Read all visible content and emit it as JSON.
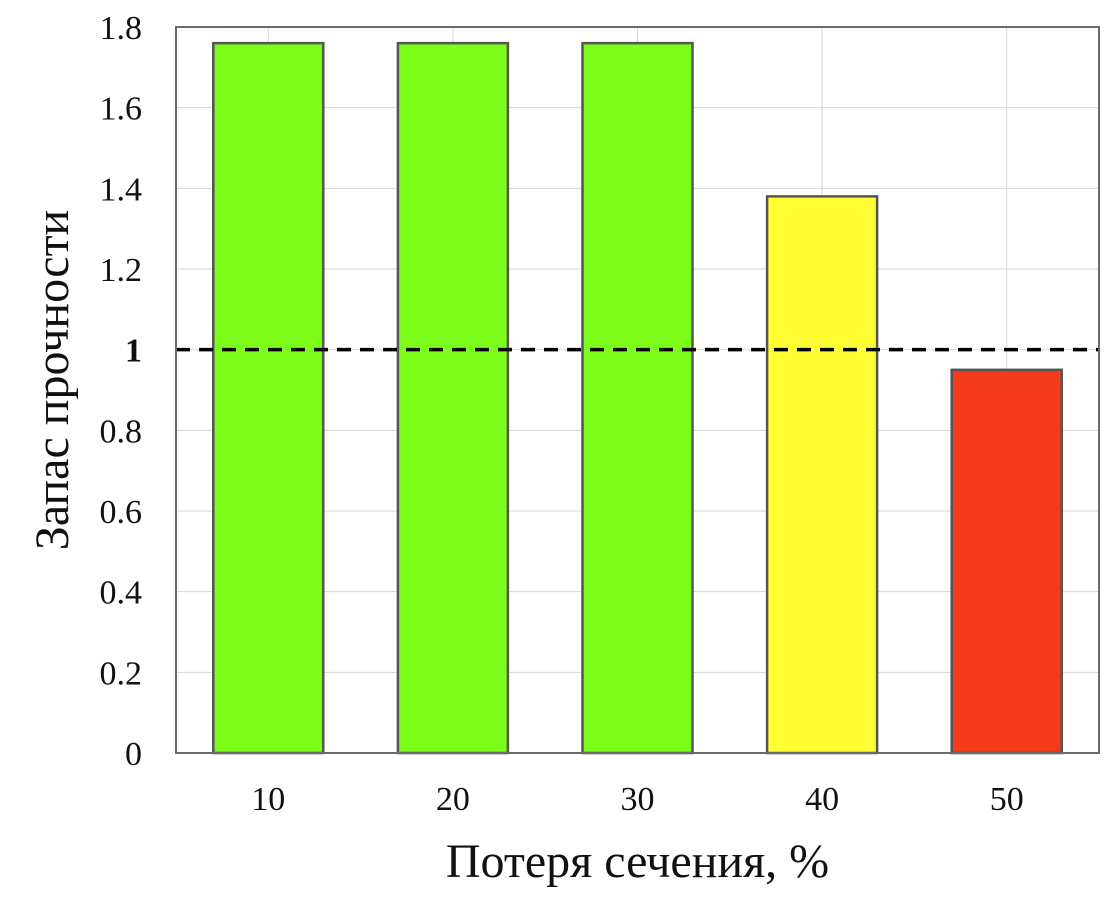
{
  "chart_data": {
    "type": "bar",
    "categories": [
      "10",
      "20",
      "30",
      "40",
      "50"
    ],
    "values": [
      1.76,
      1.76,
      1.76,
      1.38,
      0.95
    ],
    "bar_colors": [
      "#7cfc1a",
      "#7cfc1a",
      "#7cfc1a",
      "#ffff33",
      "#f43c1a"
    ],
    "xlabel": "Потеря сечения, %",
    "ylabel": "Запас прочности",
    "ylim": [
      0,
      1.8
    ],
    "yticks": [
      0,
      0.2,
      0.4,
      0.6,
      0.8,
      1,
      1.2,
      1.4,
      1.6,
      1.8
    ],
    "ytick_labels": [
      "0",
      "0.2",
      "0.4",
      "0.6",
      "0.8",
      "1",
      "1.2",
      "1.4",
      "1.6",
      "1.8"
    ],
    "reference_line": {
      "y": 1,
      "style": "dashed",
      "color": "#000000"
    },
    "grid": true
  }
}
